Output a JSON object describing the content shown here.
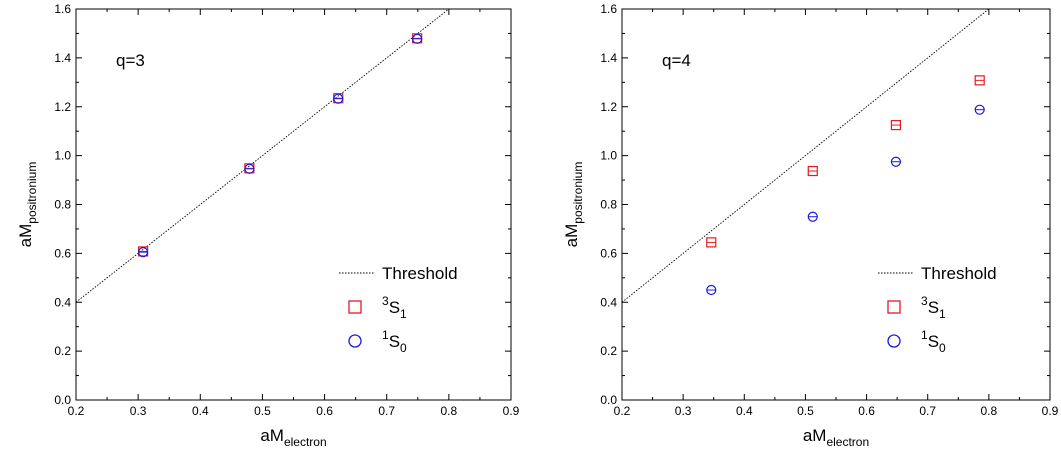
{
  "chart_data": [
    {
      "type": "scatter",
      "panel_label": "q=3",
      "xlabel": {
        "main": "aM",
        "sub": "electron"
      },
      "ylabel": {
        "main": "aM",
        "sub": "positronium"
      },
      "xlim": [
        0.2,
        0.9
      ],
      "ylim": [
        0.0,
        1.6
      ],
      "xticks": [
        "0.2",
        "0.3",
        "0.4",
        "0.5",
        "0.6",
        "0.7",
        "0.8",
        "0.9"
      ],
      "yticks": [
        "0.0",
        "0.2",
        "0.4",
        "0.6",
        "0.8",
        "1.0",
        "1.2",
        "1.4",
        "1.6"
      ],
      "grid": false,
      "legend_position": "bottom-right",
      "threshold": {
        "label": "Threshold",
        "slope": 2,
        "intercept": 0
      },
      "series": [
        {
          "name": "3S1",
          "label": {
            "sup": "3",
            "base": "S",
            "sub": "1"
          },
          "marker": "square",
          "color": "#e8191e",
          "x": [
            0.308,
            0.479,
            0.622,
            0.749
          ],
          "y": [
            0.608,
            0.948,
            1.235,
            1.48
          ]
        },
        {
          "name": "1S0",
          "label": {
            "sup": "1",
            "base": "S",
            "sub": "0"
          },
          "marker": "circle",
          "color": "#1a1ae6",
          "x": [
            0.308,
            0.479,
            0.622,
            0.749
          ],
          "y": [
            0.605,
            0.946,
            1.233,
            1.478
          ]
        }
      ]
    },
    {
      "type": "scatter",
      "panel_label": "q=4",
      "xlabel": {
        "main": "aM",
        "sub": "electron"
      },
      "ylabel": {
        "main": "aM",
        "sub": "positronium"
      },
      "xlim": [
        0.2,
        0.9
      ],
      "ylim": [
        0.0,
        1.6
      ],
      "xticks": [
        "0.2",
        "0.3",
        "0.4",
        "0.5",
        "0.6",
        "0.7",
        "0.8",
        "0.9"
      ],
      "yticks": [
        "0.0",
        "0.2",
        "0.4",
        "0.6",
        "0.8",
        "1.0",
        "1.2",
        "1.4",
        "1.6"
      ],
      "grid": false,
      "legend_position": "bottom-right",
      "threshold": {
        "label": "Threshold",
        "slope": 2,
        "intercept": 0
      },
      "series": [
        {
          "name": "3S1",
          "label": {
            "sup": "3",
            "base": "S",
            "sub": "1"
          },
          "marker": "square",
          "color": "#e8191e",
          "x": [
            0.346,
            0.512,
            0.648,
            0.785
          ],
          "y": [
            0.645,
            0.937,
            1.125,
            1.308
          ]
        },
        {
          "name": "1S0",
          "label": {
            "sup": "1",
            "base": "S",
            "sub": "0"
          },
          "marker": "circle",
          "color": "#1a1ae6",
          "x": [
            0.346,
            0.512,
            0.648,
            0.785
          ],
          "y": [
            0.45,
            0.75,
            0.975,
            1.188
          ]
        }
      ]
    }
  ]
}
